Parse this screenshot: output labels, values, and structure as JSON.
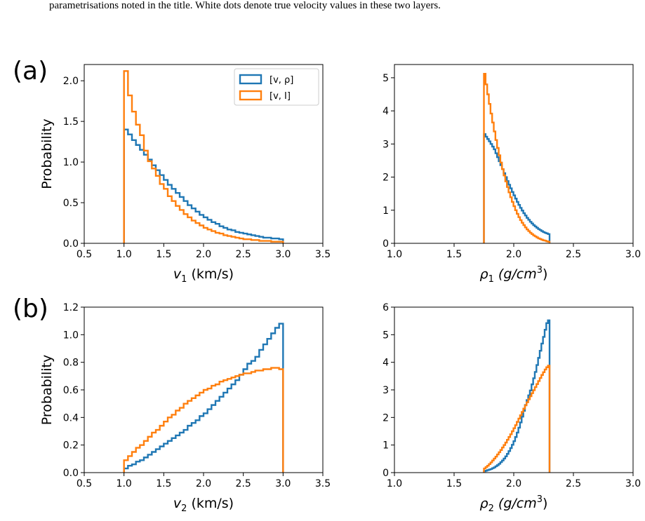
{
  "caption": "parametrisations noted in the title. White dots denote true velocity values in these two layers.",
  "panel_labels": [
    "(a)",
    "(b)"
  ],
  "colors": {
    "blue": "#1f77b4",
    "orange": "#ff7f0e"
  },
  "chart_data": [
    {
      "type": "step-histogram",
      "panel": "(a)",
      "xlabel": "v_1 (km/s)",
      "ylabel": "Probability",
      "xlim": [
        0.5,
        3.5
      ],
      "ylim": [
        0,
        2.2
      ],
      "xticks": [
        "0.5",
        "1.0",
        "1.5",
        "2.0",
        "2.5",
        "3.0",
        "3.5"
      ],
      "yticks": [
        "0.0",
        "0.5",
        "1.0",
        "1.5",
        "2.0"
      ],
      "legend": {
        "position": "top-right",
        "entries": [
          "[v, ρ]",
          "[v, I]"
        ]
      },
      "bins": [
        1.0,
        3.0,
        40
      ],
      "series": [
        {
          "name": "[v, ρ]",
          "color": "#1f77b4",
          "values": [
            1.4,
            1.34,
            1.27,
            1.21,
            1.15,
            1.09,
            1.03,
            0.96,
            0.9,
            0.84,
            0.78,
            0.72,
            0.67,
            0.62,
            0.57,
            0.52,
            0.47,
            0.43,
            0.39,
            0.35,
            0.32,
            0.29,
            0.26,
            0.24,
            0.21,
            0.19,
            0.17,
            0.16,
            0.14,
            0.13,
            0.12,
            0.11,
            0.1,
            0.09,
            0.08,
            0.07,
            0.07,
            0.06,
            0.06,
            0.05
          ]
        },
        {
          "name": "[v, I]",
          "color": "#ff7f0e",
          "values": [
            2.12,
            1.82,
            1.62,
            1.46,
            1.33,
            1.14,
            1.01,
            0.92,
            0.83,
            0.73,
            0.67,
            0.58,
            0.52,
            0.46,
            0.41,
            0.36,
            0.32,
            0.28,
            0.25,
            0.22,
            0.19,
            0.17,
            0.15,
            0.13,
            0.12,
            0.1,
            0.09,
            0.08,
            0.07,
            0.06,
            0.05,
            0.05,
            0.04,
            0.04,
            0.03,
            0.03,
            0.03,
            0.02,
            0.02,
            0.02
          ]
        }
      ]
    },
    {
      "type": "step-histogram",
      "panel": "(a)",
      "xlabel": "ρ_1 (g/cm^3)",
      "ylabel": "",
      "xlim": [
        1.0,
        3.0
      ],
      "ylim": [
        0,
        5.4
      ],
      "xticks": [
        "1.0",
        "1.5",
        "2.0",
        "2.5",
        "3.0"
      ],
      "yticks": [
        "0",
        "1",
        "2",
        "3",
        "4",
        "5"
      ],
      "bins": [
        1.75,
        2.3,
        40
      ],
      "series": [
        {
          "name": "[v, ρ]",
          "color": "#1f77b4",
          "values": [
            3.3,
            3.22,
            3.15,
            3.08,
            3.0,
            2.92,
            2.84,
            2.72,
            2.6,
            2.48,
            2.36,
            2.24,
            2.12,
            2.0,
            1.88,
            1.77,
            1.66,
            1.55,
            1.45,
            1.35,
            1.25,
            1.16,
            1.07,
            0.99,
            0.91,
            0.84,
            0.77,
            0.71,
            0.65,
            0.6,
            0.55,
            0.51,
            0.47,
            0.43,
            0.4,
            0.37,
            0.34,
            0.32,
            0.3,
            0.28
          ]
        },
        {
          "name": "[v, I]",
          "color": "#ff7f0e",
          "values": [
            5.12,
            4.8,
            4.5,
            4.21,
            3.92,
            3.65,
            3.38,
            3.12,
            2.88,
            2.66,
            2.44,
            2.24,
            2.05,
            1.87,
            1.7,
            1.54,
            1.39,
            1.25,
            1.12,
            1.0,
            0.89,
            0.79,
            0.7,
            0.62,
            0.55,
            0.48,
            0.42,
            0.37,
            0.32,
            0.28,
            0.24,
            0.21,
            0.18,
            0.15,
            0.13,
            0.11,
            0.09,
            0.08,
            0.06,
            0.05
          ]
        }
      ]
    },
    {
      "type": "step-histogram",
      "panel": "(b)",
      "xlabel": "v_2 (km/s)",
      "ylabel": "Probability",
      "xlim": [
        0.5,
        3.5
      ],
      "ylim": [
        0,
        1.2
      ],
      "xticks": [
        "0.5",
        "1.0",
        "1.5",
        "2.0",
        "2.5",
        "3.0",
        "3.5"
      ],
      "yticks": [
        "0.0",
        "0.2",
        "0.4",
        "0.6",
        "0.8",
        "1.0",
        "1.2"
      ],
      "bins": [
        1.0,
        3.0,
        40
      ],
      "series": [
        {
          "name": "[v, ρ]",
          "color": "#1f77b4",
          "values": [
            0.03,
            0.05,
            0.06,
            0.08,
            0.09,
            0.11,
            0.13,
            0.15,
            0.17,
            0.19,
            0.21,
            0.23,
            0.25,
            0.27,
            0.29,
            0.31,
            0.34,
            0.36,
            0.38,
            0.41,
            0.43,
            0.46,
            0.49,
            0.52,
            0.55,
            0.58,
            0.61,
            0.64,
            0.67,
            0.71,
            0.75,
            0.79,
            0.81,
            0.84,
            0.89,
            0.93,
            0.97,
            1.01,
            1.05,
            1.08
          ]
        },
        {
          "name": "[v, I]",
          "color": "#ff7f0e",
          "values": [
            0.09,
            0.12,
            0.15,
            0.18,
            0.2,
            0.23,
            0.26,
            0.29,
            0.31,
            0.34,
            0.37,
            0.4,
            0.42,
            0.45,
            0.47,
            0.5,
            0.52,
            0.54,
            0.56,
            0.58,
            0.6,
            0.61,
            0.63,
            0.64,
            0.66,
            0.67,
            0.68,
            0.69,
            0.7,
            0.71,
            0.72,
            0.72,
            0.73,
            0.74,
            0.74,
            0.75,
            0.75,
            0.76,
            0.76,
            0.75
          ]
        }
      ]
    },
    {
      "type": "step-histogram",
      "panel": "(b)",
      "xlabel": "ρ_2 (g/cm^3)",
      "ylabel": "",
      "xlim": [
        1.0,
        3.0
      ],
      "ylim": [
        0,
        6
      ],
      "xticks": [
        "1.0",
        "1.5",
        "2.0",
        "2.5",
        "3.0"
      ],
      "yticks": [
        "0",
        "1",
        "2",
        "3",
        "4",
        "5",
        "6"
      ],
      "bins": [
        1.75,
        2.3,
        40
      ],
      "series": [
        {
          "name": "[v, ρ]",
          "color": "#1f77b4",
          "values": [
            0.05,
            0.07,
            0.09,
            0.11,
            0.13,
            0.16,
            0.19,
            0.23,
            0.27,
            0.32,
            0.38,
            0.44,
            0.51,
            0.59,
            0.68,
            0.78,
            0.89,
            1.01,
            1.14,
            1.29,
            1.45,
            1.63,
            1.82,
            2.03,
            2.24,
            2.45,
            2.63,
            2.8,
            2.98,
            3.2,
            3.42,
            3.65,
            3.9,
            4.16,
            4.42,
            4.68,
            4.92,
            5.18,
            5.42,
            5.52
          ]
        },
        {
          "name": "[v, I]",
          "color": "#ff7f0e",
          "values": [
            0.15,
            0.2,
            0.25,
            0.31,
            0.37,
            0.44,
            0.51,
            0.58,
            0.66,
            0.74,
            0.82,
            0.91,
            1.0,
            1.09,
            1.19,
            1.29,
            1.39,
            1.5,
            1.61,
            1.72,
            1.84,
            1.96,
            2.08,
            2.2,
            2.32,
            2.44,
            2.55,
            2.66,
            2.77,
            2.88,
            2.99,
            3.1,
            3.21,
            3.32,
            3.43,
            3.54,
            3.64,
            3.74,
            3.82,
            3.88
          ]
        }
      ]
    }
  ]
}
